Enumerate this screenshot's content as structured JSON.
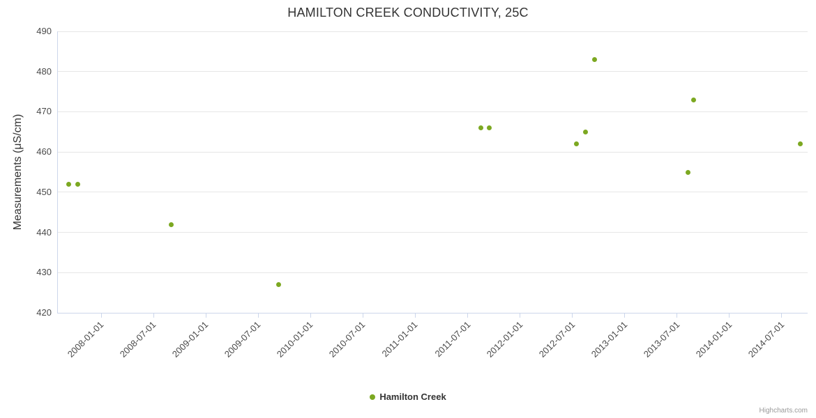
{
  "title": "HAMILTON CREEK CONDUCTIVITY, 25C",
  "y_axis_title": "Measurements (μS/cm)",
  "legend": {
    "label": "Hamilton Creek"
  },
  "credit": "Highcharts.com",
  "colors": {
    "point": "#7CA821",
    "grid": "#E6E6E6",
    "axis_line": "#CCD6EB",
    "title_text": "#333333",
    "tick_text": "#4A4A4A",
    "credit_text": "#999999"
  },
  "chart_data": {
    "type": "scatter",
    "title": "HAMILTON CREEK CONDUCTIVITY, 25C",
    "xlabel": "",
    "ylabel": "Measurements (μS/cm)",
    "ylim": [
      420,
      490
    ],
    "y_ticks": [
      420,
      430,
      440,
      450,
      460,
      470,
      480,
      490
    ],
    "x_ticks": [
      "2008-01-01",
      "2008-07-01",
      "2009-01-01",
      "2009-07-01",
      "2010-01-01",
      "2010-07-01",
      "2011-01-01",
      "2011-07-01",
      "2012-01-01",
      "2012-07-01",
      "2013-01-01",
      "2013-07-01",
      "2014-01-01",
      "2014-07-01"
    ],
    "x_range": [
      "2007-08-01",
      "2014-10-01"
    ],
    "grid": true,
    "legend_position": "bottom-center",
    "series": [
      {
        "name": "Hamilton Creek",
        "color": "#7CA821",
        "points": [
          {
            "date": "2007-09-10",
            "value": 452
          },
          {
            "date": "2007-10-12",
            "value": 452
          },
          {
            "date": "2008-09-03",
            "value": 442
          },
          {
            "date": "2009-09-12",
            "value": 427
          },
          {
            "date": "2011-08-18",
            "value": 466
          },
          {
            "date": "2011-09-16",
            "value": 466
          },
          {
            "date": "2012-07-17",
            "value": 462
          },
          {
            "date": "2012-08-17",
            "value": 465
          },
          {
            "date": "2012-09-19",
            "value": 483
          },
          {
            "date": "2013-08-10",
            "value": 455
          },
          {
            "date": "2013-08-30",
            "value": 473
          },
          {
            "date": "2014-09-06",
            "value": 462
          }
        ]
      }
    ]
  }
}
